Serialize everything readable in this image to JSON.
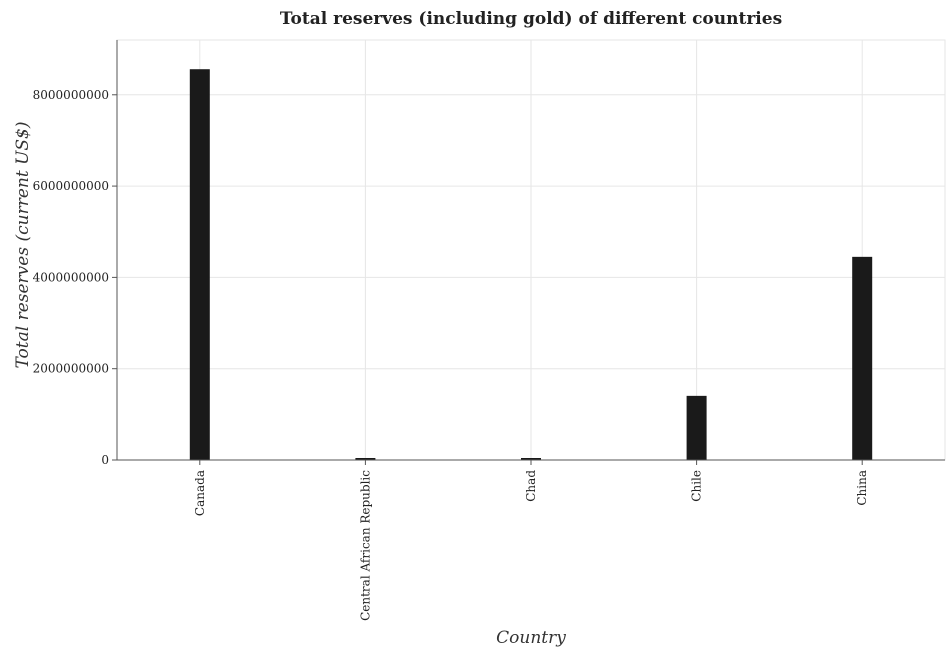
{
  "chart_data": {
    "type": "bar",
    "title": "Total reserves (including gold) of different countries",
    "xlabel": "Country",
    "ylabel": "Total reserves (current US$)",
    "categories": [
      "Canada",
      "Central African Republic",
      "Chad",
      "Chile",
      "China"
    ],
    "values": [
      8560000000,
      26000000,
      15000000,
      1405000000,
      4450000000
    ],
    "ylim": [
      0,
      9200000000
    ],
    "yticks": [
      0,
      2000000000,
      4000000000,
      6000000000,
      8000000000
    ],
    "ytick_labels": [
      "0",
      "2000000000",
      "4000000000",
      "6000000000",
      "8000000000"
    ],
    "grid": true,
    "legend": "none",
    "colors": {
      "bar": "#1a1a1a",
      "grid": "#e6e6e6",
      "axis": "#555555"
    }
  }
}
